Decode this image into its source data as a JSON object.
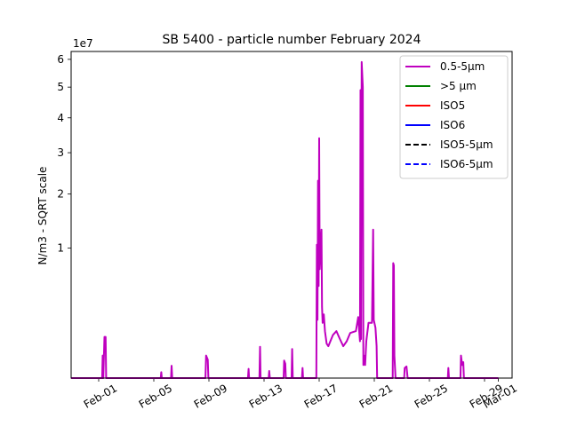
{
  "chart_data": {
    "type": "line",
    "title": "SB 5400 - particle number February 2024",
    "xlabel": "",
    "ylabel": "N/m3 - SQRT scale",
    "scale": "sqrt",
    "offset_label": "1e7",
    "ylim": [
      0,
      63000000
    ],
    "xlim": [
      "2024-01-30",
      "2024-03-02"
    ],
    "y_ticks": [
      {
        "value": 10000000,
        "label": "1"
      },
      {
        "value": 20000000,
        "label": "2"
      },
      {
        "value": 30000000,
        "label": "3"
      },
      {
        "value": 40000000,
        "label": "4"
      },
      {
        "value": 50000000,
        "label": "5"
      },
      {
        "value": 60000000,
        "label": "6"
      }
    ],
    "x_ticks": [
      {
        "value": "2024-02-01",
        "label": "Feb-01"
      },
      {
        "value": "2024-02-05",
        "label": "Feb-05"
      },
      {
        "value": "2024-02-09",
        "label": "Feb-09"
      },
      {
        "value": "2024-02-13",
        "label": "Feb-13"
      },
      {
        "value": "2024-02-17",
        "label": "Feb-17"
      },
      {
        "value": "2024-02-21",
        "label": "Feb-21"
      },
      {
        "value": "2024-02-25",
        "label": "Feb-25"
      },
      {
        "value": "2024-02-29",
        "label": "Feb-29"
      },
      {
        "value": "2024-03-01",
        "label": "Mar-01"
      }
    ],
    "grid": false,
    "legend_position": "top-right",
    "legend": [
      {
        "label": "0.5-5µm",
        "color": "#bf00bf",
        "dash": "solid"
      },
      {
        "label": ">5 µm",
        "color": "#008000",
        "dash": "solid"
      },
      {
        "label": "ISO5",
        "color": "#ff0000",
        "dash": "solid"
      },
      {
        "label": "ISO6",
        "color": "#0000ff",
        "dash": "solid"
      },
      {
        "label": "ISO5-5µm",
        "color": "#000000",
        "dash": "dashed"
      },
      {
        "label": "ISO6-5µm",
        "color": "#0000ff",
        "dash": "dashed"
      }
    ],
    "series": [
      {
        "name": "0.5-5µm",
        "color": "#bf00bf",
        "points": [
          [
            "2024-01-30T00:00",
            0
          ],
          [
            "2024-02-01T06:00",
            0
          ],
          [
            "2024-02-01T07:00",
            300000
          ],
          [
            "2024-02-01T08:00",
            0
          ],
          [
            "2024-02-01T10:00",
            1000000
          ],
          [
            "2024-02-01T12:00",
            1000000
          ],
          [
            "2024-02-01T13:00",
            0
          ],
          [
            "2024-02-05T12:00",
            0
          ],
          [
            "2024-02-05T13:00",
            20000
          ],
          [
            "2024-02-05T14:00",
            0
          ],
          [
            "2024-02-06T06:00",
            0
          ],
          [
            "2024-02-06T07:00",
            90000
          ],
          [
            "2024-02-06T08:00",
            0
          ],
          [
            "2024-02-08T18:00",
            0
          ],
          [
            "2024-02-08T19:00",
            300000
          ],
          [
            "2024-02-08T22:00",
            200000
          ],
          [
            "2024-02-08T23:00",
            0
          ],
          [
            "2024-02-11T20:00",
            0
          ],
          [
            "2024-02-11T21:00",
            50000
          ],
          [
            "2024-02-11T22:00",
            0
          ],
          [
            "2024-02-12T16:00",
            0
          ],
          [
            "2024-02-12T17:00",
            580000
          ],
          [
            "2024-02-12T18:00",
            0
          ],
          [
            "2024-02-13T08:00",
            0
          ],
          [
            "2024-02-13T09:00",
            30000
          ],
          [
            "2024-02-13T10:00",
            0
          ],
          [
            "2024-02-14T10:00",
            0
          ],
          [
            "2024-02-14T11:00",
            180000
          ],
          [
            "2024-02-14T13:00",
            120000
          ],
          [
            "2024-02-14T14:00",
            0
          ],
          [
            "2024-02-15T00:00",
            0
          ],
          [
            "2024-02-15T01:00",
            500000
          ],
          [
            "2024-02-15T02:00",
            0
          ],
          [
            "2024-02-15T18:00",
            0
          ],
          [
            "2024-02-15T19:00",
            60000
          ],
          [
            "2024-02-15T20:00",
            0
          ],
          [
            "2024-02-16T19:00",
            0
          ],
          [
            "2024-02-16T20:00",
            10500000
          ],
          [
            "2024-02-16T21:00",
            2000000
          ],
          [
            "2024-02-16T22:00",
            23000000
          ],
          [
            "2024-02-16T23:00",
            5000000
          ],
          [
            "2024-02-17T00:00",
            34000000
          ],
          [
            "2024-02-17T01:00",
            7000000
          ],
          [
            "2024-02-17T02:00",
            9000000
          ],
          [
            "2024-02-17T04:00",
            13000000
          ],
          [
            "2024-02-17T05:00",
            3000000
          ],
          [
            "2024-02-17T06:00",
            1800000
          ],
          [
            "2024-02-17T08:00",
            2400000
          ],
          [
            "2024-02-17T10:00",
            1300000
          ],
          [
            "2024-02-17T13:00",
            700000
          ],
          [
            "2024-02-17T16:00",
            600000
          ],
          [
            "2024-02-18T00:00",
            1100000
          ],
          [
            "2024-02-18T06:00",
            1300000
          ],
          [
            "2024-02-18T12:00",
            900000
          ],
          [
            "2024-02-18T18:00",
            600000
          ],
          [
            "2024-02-19T00:00",
            800000
          ],
          [
            "2024-02-19T06:00",
            1200000
          ],
          [
            "2024-02-19T16:00",
            1300000
          ],
          [
            "2024-02-19T20:00",
            2200000
          ],
          [
            "2024-02-19T23:00",
            800000
          ],
          [
            "2024-02-20T00:00",
            49000000
          ],
          [
            "2024-02-20T01:00",
            900000
          ],
          [
            "2024-02-20T02:00",
            59000000
          ],
          [
            "2024-02-20T04:00",
            50000000
          ],
          [
            "2024-02-20T05:00",
            100000
          ],
          [
            "2024-02-20T06:00",
            300000
          ],
          [
            "2024-02-20T08:00",
            100000
          ],
          [
            "2024-02-20T10:00",
            800000
          ],
          [
            "2024-02-20T14:00",
            1800000
          ],
          [
            "2024-02-20T20:00",
            1800000
          ],
          [
            "2024-02-20T22:00",
            13000000
          ],
          [
            "2024-02-20T23:00",
            2000000
          ],
          [
            "2024-02-21T02:00",
            1500000
          ],
          [
            "2024-02-21T04:00",
            600000
          ],
          [
            "2024-02-21T05:00",
            0
          ],
          [
            "2024-02-22T08:00",
            0
          ],
          [
            "2024-02-22T09:00",
            7800000
          ],
          [
            "2024-02-22T10:00",
            7500000
          ],
          [
            "2024-02-22T11:00",
            300000
          ],
          [
            "2024-02-22T13:00",
            0
          ],
          [
            "2024-02-23T04:00",
            0
          ],
          [
            "2024-02-23T05:00",
            60000
          ],
          [
            "2024-02-23T08:00",
            80000
          ],
          [
            "2024-02-23T10:00",
            0
          ],
          [
            "2024-02-26T08:00",
            0
          ],
          [
            "2024-02-26T09:00",
            60000
          ],
          [
            "2024-02-26T10:00",
            0
          ],
          [
            "2024-02-27T06:00",
            0
          ],
          [
            "2024-02-27T07:00",
            300000
          ],
          [
            "2024-02-27T09:00",
            100000
          ],
          [
            "2024-02-27T11:00",
            150000
          ],
          [
            "2024-02-27T12:00",
            0
          ],
          [
            "2024-03-01T00:00",
            0
          ]
        ]
      }
    ]
  }
}
